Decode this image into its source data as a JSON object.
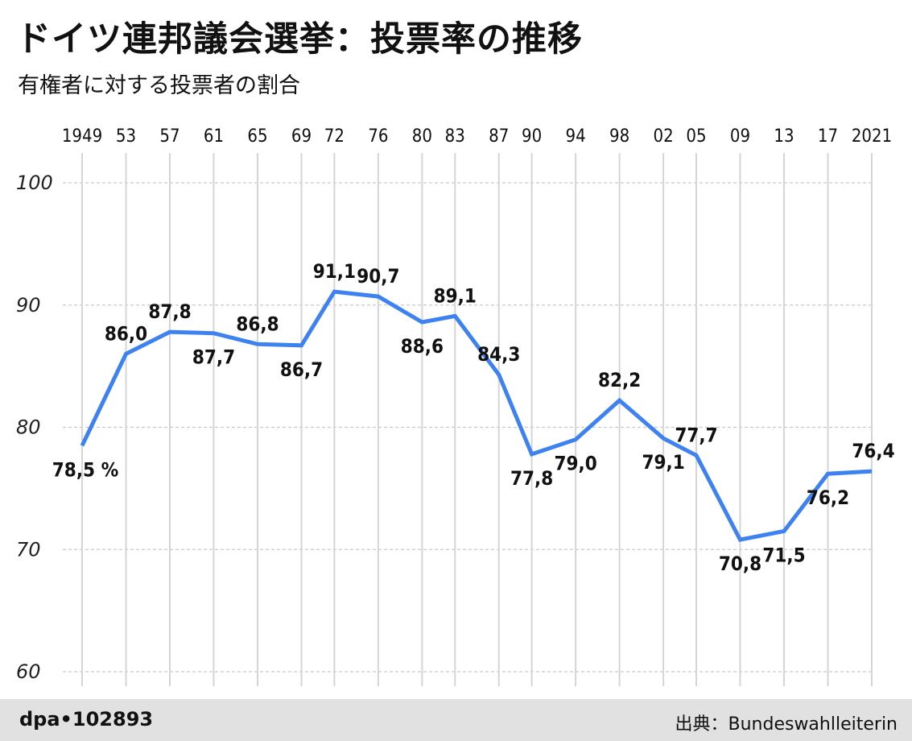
{
  "header": {
    "title": "ドイツ連邦議会選挙：投票率の推移",
    "subtitle": "有権者に対する投票者の割合"
  },
  "footer": {
    "credit": "dpa•102893",
    "source": "出典：Bundeswahlleiterin"
  },
  "colors": {
    "line": "#3d82f0",
    "grid": "#c9c9c9",
    "vline": "#d5d5d5",
    "footer_bg": "#e1e1e1"
  },
  "chart_data": {
    "type": "line",
    "title": "ドイツ連邦議会選挙：投票率の推移",
    "subtitle": "有権者に対する投票者の割合",
    "categories": [
      "1949",
      "53",
      "57",
      "61",
      "65",
      "69",
      "72",
      "76",
      "80",
      "83",
      "87",
      "90",
      "94",
      "98",
      "02",
      "05",
      "09",
      "13",
      "17",
      "2021"
    ],
    "x_years": [
      1949,
      1953,
      1957,
      1961,
      1965,
      1969,
      1972,
      1976,
      1980,
      1983,
      1987,
      1990,
      1994,
      1998,
      2002,
      2005,
      2009,
      2013,
      2017,
      2021
    ],
    "values": [
      78.5,
      86.0,
      87.8,
      87.7,
      86.8,
      86.7,
      91.1,
      90.7,
      88.6,
      89.1,
      84.3,
      77.8,
      79.0,
      82.2,
      79.1,
      77.7,
      70.8,
      71.5,
      76.2,
      76.4
    ],
    "value_labels": [
      "78,5 %",
      "86,0",
      "87,8",
      "87,7",
      "86,8",
      "86,7",
      "91,1",
      "90,7",
      "88,6",
      "89,1",
      "84,3",
      "77,8",
      "79,0",
      "82,2",
      "79,1",
      "77,7",
      "70,8",
      "71,5",
      "76,2",
      "76,4"
    ],
    "label_positions": [
      "below",
      "above",
      "above",
      "below",
      "above",
      "below",
      "above",
      "above",
      "below",
      "above",
      "above",
      "below",
      "below",
      "above",
      "below",
      "above",
      "below",
      "below",
      "below",
      "above"
    ],
    "ylim": [
      60,
      100
    ],
    "yticks": [
      60,
      70,
      80,
      90,
      100
    ],
    "grid": true,
    "xaxis_position": "top"
  }
}
